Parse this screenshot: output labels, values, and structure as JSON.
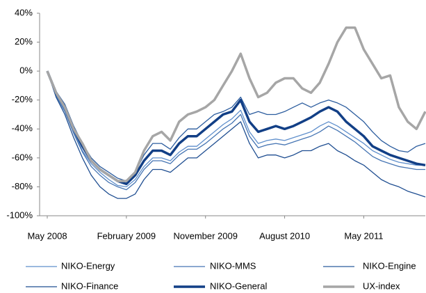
{
  "chart_data": {
    "type": "line",
    "x": [
      "2008-05",
      "2008-06",
      "2008-07",
      "2008-08",
      "2008-09",
      "2008-10",
      "2008-11",
      "2008-12",
      "2009-01",
      "2009-02",
      "2009-03",
      "2009-04",
      "2009-05",
      "2009-06",
      "2009-07",
      "2009-08",
      "2009-09",
      "2009-10",
      "2009-11",
      "2009-12",
      "2010-01",
      "2010-02",
      "2010-03",
      "2010-04",
      "2010-05",
      "2010-06",
      "2010-07",
      "2010-08",
      "2010-09",
      "2010-10",
      "2010-11",
      "2010-12",
      "2011-01",
      "2011-02",
      "2011-03",
      "2011-04",
      "2011-05",
      "2011-06",
      "2011-07",
      "2011-08",
      "2011-09",
      "2011-10",
      "2011-11",
      "2011-12"
    ],
    "xticks": [
      {
        "value": "2008-05",
        "label": "May 2008"
      },
      {
        "value": "2009-02",
        "label": "February 2009"
      },
      {
        "value": "2009-11",
        "label": "November 2009"
      },
      {
        "value": "2010-08",
        "label": "August 2010"
      },
      {
        "value": "2011-05",
        "label": "May 2011"
      }
    ],
    "ylim": [
      -100,
      40
    ],
    "yticks": [
      {
        "value": -100,
        "label": "-100%"
      },
      {
        "value": -80,
        "label": "-80%"
      },
      {
        "value": -60,
        "label": "-60%"
      },
      {
        "value": -40,
        "label": "-40%"
      },
      {
        "value": -20,
        "label": "-20%"
      },
      {
        "value": 0,
        "label": "0%"
      },
      {
        "value": 20,
        "label": "20%"
      },
      {
        "value": 40,
        "label": "40%"
      }
    ],
    "grid": false,
    "legend": "bottom",
    "series": [
      {
        "name": "NIKO-Energy",
        "color": "#5f8fcc",
        "width": 1.3,
        "values": [
          0,
          -16,
          -27,
          -42,
          -55,
          -64,
          -70,
          -75,
          -79,
          -80,
          -75,
          -66,
          -60,
          -60,
          -62,
          -56,
          -52,
          -52,
          -47,
          -42,
          -37,
          -33,
          -27,
          -42,
          -50,
          -48,
          -47,
          -48,
          -46,
          -44,
          -42,
          -38,
          -35,
          -38,
          -42,
          -46,
          -50,
          -55,
          -58,
          -61,
          -63,
          -64,
          -65,
          -65
        ]
      },
      {
        "name": "NIKO-MMS",
        "color": "#4675b3",
        "width": 1.3,
        "values": [
          0,
          -17,
          -28,
          -43,
          -56,
          -66,
          -72,
          -77,
          -80,
          -82,
          -77,
          -68,
          -62,
          -62,
          -64,
          -58,
          -54,
          -54,
          -50,
          -45,
          -40,
          -36,
          -30,
          -45,
          -53,
          -51,
          -50,
          -51,
          -49,
          -47,
          -45,
          -42,
          -38,
          -41,
          -45,
          -49,
          -54,
          -59,
          -62,
          -64,
          -66,
          -67,
          -68,
          -68
        ]
      },
      {
        "name": "NIKO-Engine",
        "color": "#2b5c9e",
        "width": 1.3,
        "values": [
          0,
          -14,
          -23,
          -38,
          -50,
          -60,
          -66,
          -70,
          -74,
          -76,
          -70,
          -58,
          -50,
          -50,
          -54,
          -46,
          -40,
          -40,
          -35,
          -30,
          -28,
          -25,
          -18,
          -30,
          -28,
          -30,
          -30,
          -28,
          -25,
          -22,
          -25,
          -22,
          -20,
          -22,
          -25,
          -30,
          -35,
          -42,
          -48,
          -52,
          -55,
          -56,
          -52,
          -50
        ]
      },
      {
        "name": "NIKO-Finance",
        "color": "#1f4e91",
        "width": 1.3,
        "values": [
          0,
          -18,
          -30,
          -46,
          -60,
          -72,
          -80,
          -85,
          -88,
          -88,
          -85,
          -75,
          -68,
          -68,
          -70,
          -65,
          -60,
          -60,
          -55,
          -50,
          -45,
          -40,
          -35,
          -50,
          -60,
          -58,
          -58,
          -60,
          -58,
          -55,
          -55,
          -52,
          -50,
          -55,
          -58,
          -62,
          -65,
          -70,
          -75,
          -78,
          -80,
          -83,
          -85,
          -87
        ]
      },
      {
        "name": "NIKO-General",
        "color": "#123f86",
        "width": 3.5,
        "values": [
          0,
          -15,
          -25,
          -40,
          -52,
          -62,
          -68,
          -72,
          -76,
          -78,
          -72,
          -62,
          -55,
          -55,
          -58,
          -50,
          -45,
          -45,
          -40,
          -35,
          -30,
          -28,
          -20,
          -35,
          -42,
          -40,
          -38,
          -40,
          -38,
          -35,
          -32,
          -28,
          -25,
          -28,
          -35,
          -40,
          -45,
          -52,
          -55,
          -58,
          -60,
          -62,
          -64,
          -65
        ]
      },
      {
        "name": "UX-index",
        "color": "#a6a6a6",
        "width": 3.5,
        "values": [
          0,
          -15,
          -25,
          -40,
          -50,
          -62,
          -68,
          -72,
          -76,
          -76,
          -70,
          -55,
          -45,
          -42,
          -48,
          -35,
          -30,
          -28,
          -25,
          -20,
          -10,
          0,
          12,
          -5,
          -18,
          -15,
          -8,
          -5,
          -5,
          -12,
          -15,
          -8,
          5,
          20,
          30,
          30,
          15,
          5,
          -5,
          -3,
          -25,
          -35,
          -40,
          -28
        ]
      }
    ]
  }
}
